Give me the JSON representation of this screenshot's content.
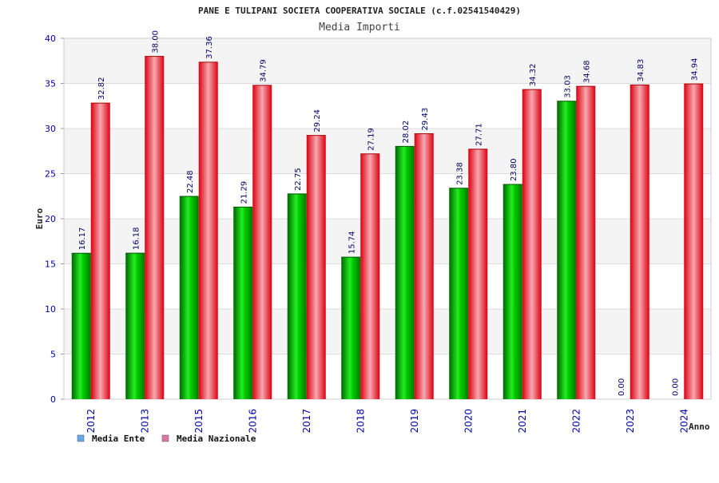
{
  "chart_data": {
    "type": "bar",
    "title": "PANE E TULIPANI SOCIETA COOPERATIVA SOCIALE (c.f.02541540429)",
    "subtitle": "Media Importi",
    "xlabel": "Anno",
    "ylabel": "Euro",
    "ylim": [
      0,
      40
    ],
    "yticks": [
      0,
      5,
      10,
      15,
      20,
      25,
      30,
      35,
      40
    ],
    "grid": true,
    "legend_position": "bottom-left",
    "categories": [
      "2012",
      "2013",
      "2015",
      "2016",
      "2017",
      "2018",
      "2019",
      "2020",
      "2021",
      "2022",
      "2023",
      "2024"
    ],
    "series": [
      {
        "name": "Media Ente",
        "color": "#00cc00",
        "legend_color": "#66aaee",
        "values": [
          16.17,
          16.18,
          22.48,
          21.29,
          22.75,
          15.74,
          28.02,
          23.38,
          23.8,
          33.03,
          0.0,
          0.0
        ],
        "labels": [
          "16.17",
          "16.18",
          "22.48",
          "21.29",
          "22.75",
          "15.74",
          "28.02",
          "23.38",
          "23.80",
          "33.03",
          "0.00",
          "0.00"
        ]
      },
      {
        "name": "Media Nazionale",
        "color": "#ee1122",
        "legend_color": "#dd77aa",
        "values": [
          32.82,
          38.0,
          37.36,
          34.79,
          29.24,
          27.19,
          29.43,
          27.71,
          34.32,
          34.68,
          34.83,
          34.94
        ],
        "labels": [
          "32.82",
          "38.00",
          "37.36",
          "34.79",
          "29.24",
          "27.19",
          "29.43",
          "27.71",
          "34.32",
          "34.68",
          "34.83",
          "34.94"
        ]
      }
    ]
  }
}
